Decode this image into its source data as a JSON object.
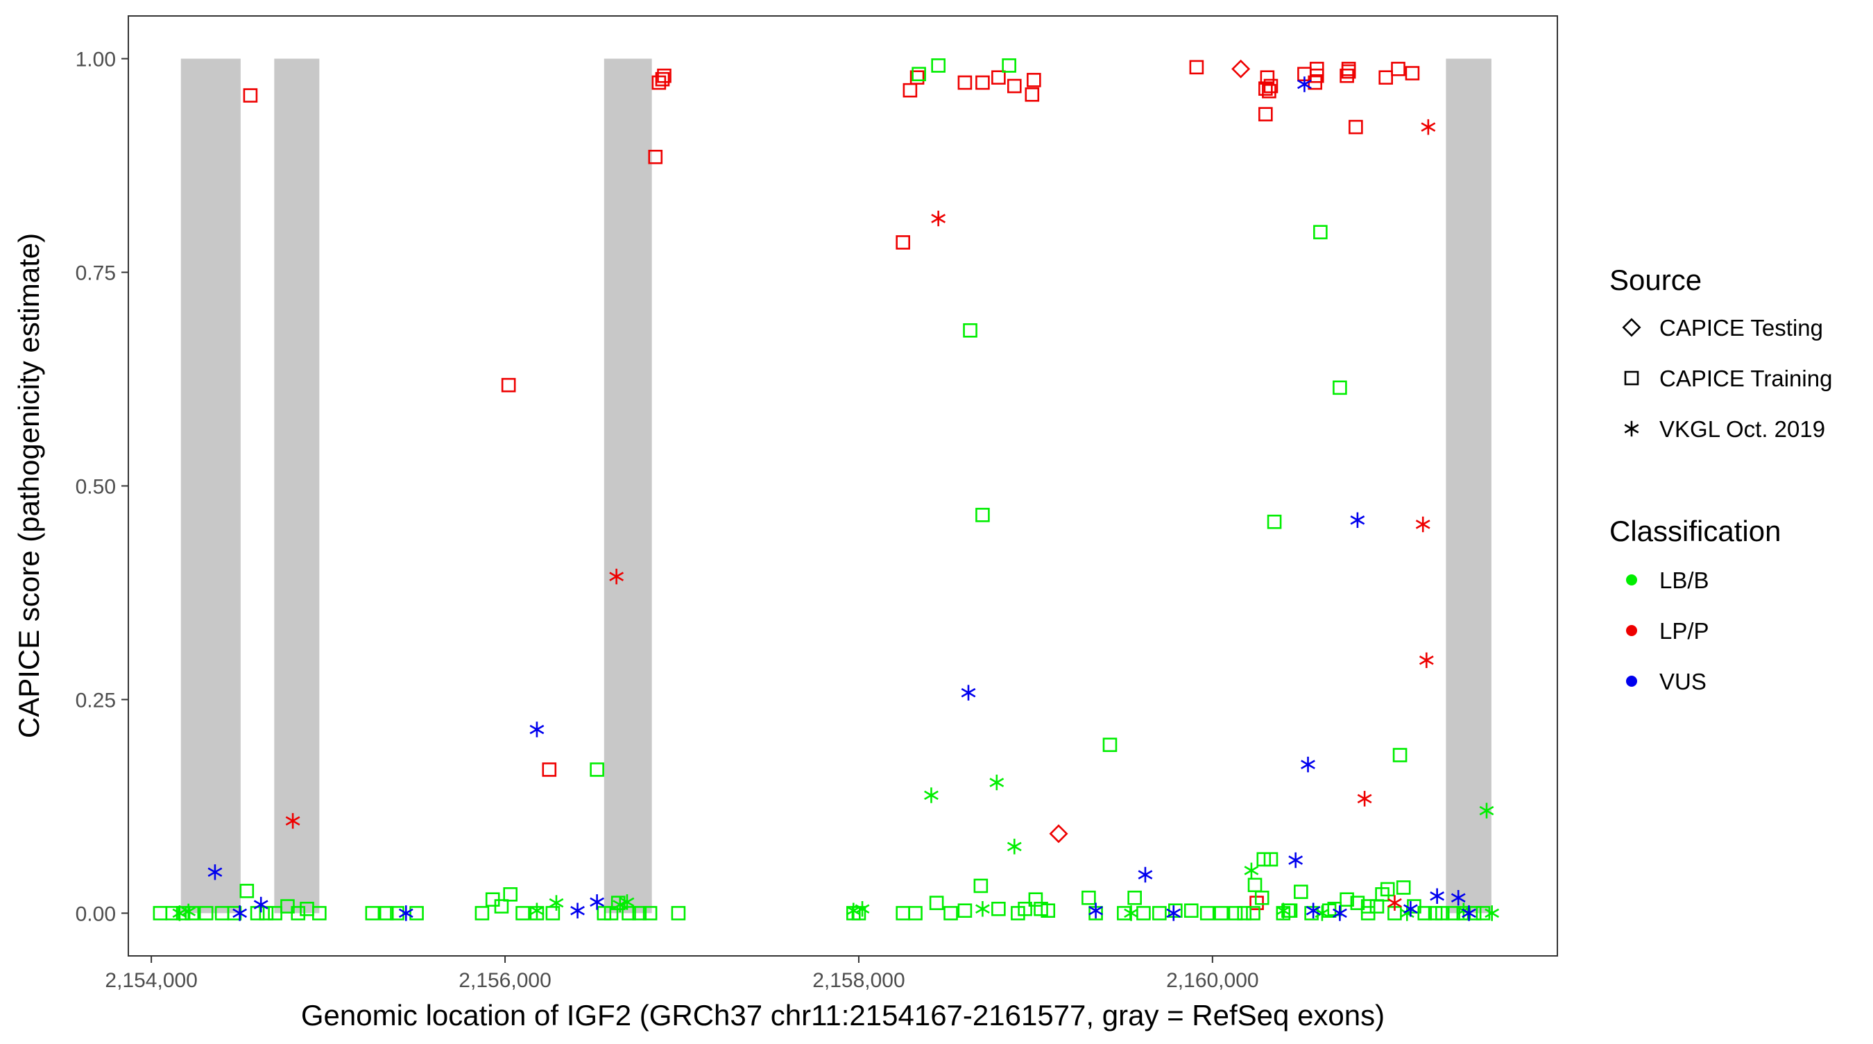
{
  "chart_data": {
    "type": "scatter",
    "xlabel": "Genomic location of IGF2 (GRCh37 chr11:2154167-2161577, gray = RefSeq exons)",
    "ylabel": "CAPICE score (pathogenicity estimate)",
    "xlim": [
      2153870,
      2161950
    ],
    "ylim": [
      -0.05,
      1.05
    ],
    "x_ticks": [
      2154000,
      2156000,
      2158000,
      2160000
    ],
    "x_tick_labels": [
      "2,154,000",
      "2,156,000",
      "2,158,000",
      "2,160,000"
    ],
    "y_ticks": [
      0,
      0.25,
      0.5,
      0.75,
      1.0
    ],
    "y_tick_labels": [
      "0.00",
      "0.25",
      "0.50",
      "0.75",
      "1.00"
    ],
    "grid": false,
    "exons": [
      [
        2154167,
        2154505
      ],
      [
        2154695,
        2154950
      ],
      [
        2156560,
        2156830
      ],
      [
        2161320,
        2161577
      ]
    ],
    "exon_color": "#c8c8c8",
    "legend": {
      "position": "right",
      "source_title": "Source",
      "source_items": [
        {
          "label": "CAPICE Testing",
          "shape": "diamond"
        },
        {
          "label": "CAPICE Training",
          "shape": "square"
        },
        {
          "label": "VKGL Oct. 2019",
          "shape": "asterisk"
        }
      ],
      "class_title": "Classification",
      "class_items": [
        {
          "label": "LB/B",
          "color": "#00ee00"
        },
        {
          "label": "LP/P",
          "color": "#ee0000"
        },
        {
          "label": "VUS",
          "color": "#0000ee"
        }
      ]
    },
    "series": [
      {
        "source": "CAPICE Training",
        "classification": "LP/P",
        "shape": "square",
        "color": "#ee0000",
        "points": [
          [
            2154560,
            0.957
          ],
          [
            2156020,
            0.618
          ],
          [
            2156250,
            0.168
          ],
          [
            2156850,
            0.885
          ],
          [
            2156870,
            0.972
          ],
          [
            2156890,
            0.976
          ],
          [
            2156900,
            0.98
          ],
          [
            2158250,
            0.785
          ],
          [
            2158290,
            0.963
          ],
          [
            2158330,
            0.978
          ],
          [
            2158600,
            0.972
          ],
          [
            2158700,
            0.972
          ],
          [
            2158790,
            0.978
          ],
          [
            2158880,
            0.968
          ],
          [
            2158980,
            0.958
          ],
          [
            2158990,
            0.975
          ],
          [
            2159910,
            0.99
          ],
          [
            2160300,
            0.935
          ],
          [
            2160300,
            0.965
          ],
          [
            2160310,
            0.978
          ],
          [
            2160320,
            0.962
          ],
          [
            2160330,
            0.968
          ],
          [
            2160520,
            0.982
          ],
          [
            2160580,
            0.972
          ],
          [
            2160590,
            0.98
          ],
          [
            2160590,
            0.988
          ],
          [
            2160760,
            0.98
          ],
          [
            2160770,
            0.985
          ],
          [
            2160770,
            0.988
          ],
          [
            2160810,
            0.92
          ],
          [
            2160980,
            0.978
          ],
          [
            2161050,
            0.988
          ],
          [
            2161130,
            0.983
          ],
          [
            2160250,
            0.012
          ]
        ]
      },
      {
        "source": "CAPICE Training",
        "classification": "LB/B",
        "shape": "square",
        "color": "#00ee00",
        "points": [
          [
            2154050,
            0
          ],
          [
            2154120,
            0
          ],
          [
            2154180,
            0
          ],
          [
            2154230,
            0
          ],
          [
            2154310,
            0
          ],
          [
            2154400,
            0
          ],
          [
            2154470,
            0
          ],
          [
            2154540,
            0.026
          ],
          [
            2154600,
            0
          ],
          [
            2154650,
            0
          ],
          [
            2154700,
            0
          ],
          [
            2154770,
            0.008
          ],
          [
            2154830,
            0
          ],
          [
            2154880,
            0.005
          ],
          [
            2154950,
            0
          ],
          [
            2155250,
            0
          ],
          [
            2155330,
            0
          ],
          [
            2155390,
            0
          ],
          [
            2155500,
            0
          ],
          [
            2155870,
            0
          ],
          [
            2155930,
            0.016
          ],
          [
            2155980,
            0.008
          ],
          [
            2156030,
            0.022
          ],
          [
            2156100,
            0
          ],
          [
            2156180,
            0
          ],
          [
            2156270,
            0
          ],
          [
            2156520,
            0.168
          ],
          [
            2156560,
            0
          ],
          [
            2156600,
            0
          ],
          [
            2156640,
            0.012
          ],
          [
            2156700,
            0
          ],
          [
            2156760,
            0
          ],
          [
            2156820,
            0
          ],
          [
            2156980,
            0
          ],
          [
            2157970,
            0
          ],
          [
            2158000,
            0
          ],
          [
            2158250,
            0
          ],
          [
            2158320,
            0
          ],
          [
            2158340,
            0.982
          ],
          [
            2158440,
            0.012
          ],
          [
            2158450,
            0.992
          ],
          [
            2158520,
            0
          ],
          [
            2158600,
            0.003
          ],
          [
            2158630,
            0.682
          ],
          [
            2158690,
            0.032
          ],
          [
            2158700,
            0.466
          ],
          [
            2158790,
            0.005
          ],
          [
            2158850,
            0.992
          ],
          [
            2158900,
            0
          ],
          [
            2158940,
            0.005
          ],
          [
            2159000,
            0.016
          ],
          [
            2159030,
            0.005
          ],
          [
            2159070,
            0.003
          ],
          [
            2159300,
            0.018
          ],
          [
            2159340,
            0
          ],
          [
            2159420,
            0.197
          ],
          [
            2159500,
            0
          ],
          [
            2159560,
            0.018
          ],
          [
            2159610,
            0
          ],
          [
            2159700,
            0
          ],
          [
            2159790,
            0.003
          ],
          [
            2159880,
            0.003
          ],
          [
            2159970,
            0
          ],
          [
            2160050,
            0
          ],
          [
            2160130,
            0
          ],
          [
            2160180,
            0
          ],
          [
            2160230,
            0
          ],
          [
            2160280,
            0.018
          ],
          [
            2160290,
            0.063
          ],
          [
            2160330,
            0.063
          ],
          [
            2160350,
            0.458
          ],
          [
            2160400,
            0
          ],
          [
            2160430,
            0.003
          ],
          [
            2160500,
            0.025
          ],
          [
            2160560,
            0
          ],
          [
            2160610,
            0.797
          ],
          [
            2160690,
            0.005
          ],
          [
            2160720,
            0.615
          ],
          [
            2160760,
            0.016
          ],
          [
            2160820,
            0.012
          ],
          [
            2160880,
            0
          ],
          [
            2160930,
            0.008
          ],
          [
            2160960,
            0.022
          ],
          [
            2160990,
            0.028
          ],
          [
            2161030,
            0
          ],
          [
            2161060,
            0.185
          ],
          [
            2161080,
            0.03
          ],
          [
            2161140,
            0.008
          ],
          [
            2161200,
            0
          ],
          [
            2161260,
            0
          ],
          [
            2161300,
            0
          ],
          [
            2161360,
            0
          ],
          [
            2161420,
            0
          ],
          [
            2161480,
            0
          ],
          [
            2161530,
            0
          ],
          [
            2160240,
            0.033
          ],
          [
            2160440,
            0.003
          ],
          [
            2160660,
            0.003
          ],
          [
            2160880,
            0.008
          ]
        ]
      },
      {
        "source": "CAPICE Testing",
        "classification": "LP/P",
        "shape": "diamond",
        "color": "#ee0000",
        "points": [
          [
            2159130,
            0.093
          ],
          [
            2160160,
            0.988
          ]
        ]
      },
      {
        "source": "VKGL Oct. 2019",
        "classification": "LP/P",
        "shape": "asterisk",
        "color": "#ee0000",
        "points": [
          [
            2154800,
            0.108
          ],
          [
            2156630,
            0.394
          ],
          [
            2158450,
            0.813
          ],
          [
            2160860,
            0.134
          ],
          [
            2161030,
            0.012
          ],
          [
            2161190,
            0.455
          ],
          [
            2161210,
            0.296
          ],
          [
            2161220,
            0.92
          ]
        ]
      },
      {
        "source": "VKGL Oct. 2019",
        "classification": "LB/B",
        "shape": "asterisk",
        "color": "#00ee00",
        "points": [
          [
            2154160,
            0
          ],
          [
            2154210,
            0.002
          ],
          [
            2156180,
            0.003
          ],
          [
            2156290,
            0.012
          ],
          [
            2156650,
            0.01
          ],
          [
            2156690,
            0.013
          ],
          [
            2157970,
            0.003
          ],
          [
            2158020,
            0.005
          ],
          [
            2158410,
            0.138
          ],
          [
            2158700,
            0.005
          ],
          [
            2158780,
            0.153
          ],
          [
            2158880,
            0.078
          ],
          [
            2159540,
            0
          ],
          [
            2160220,
            0.05
          ],
          [
            2160400,
            0.003
          ],
          [
            2160620,
            0
          ],
          [
            2161100,
            0
          ],
          [
            2161420,
            0.003
          ],
          [
            2161550,
            0.12
          ],
          [
            2161580,
            0
          ]
        ]
      },
      {
        "source": "VKGL Oct. 2019",
        "classification": "VUS",
        "shape": "asterisk",
        "color": "#0000ee",
        "points": [
          [
            2154360,
            0.048
          ],
          [
            2154500,
            0
          ],
          [
            2154620,
            0.01
          ],
          [
            2155440,
            0
          ],
          [
            2156180,
            0.215
          ],
          [
            2156410,
            0.003
          ],
          [
            2156520,
            0.013
          ],
          [
            2158620,
            0.258
          ],
          [
            2159340,
            0.003
          ],
          [
            2159620,
            0.045
          ],
          [
            2159780,
            0
          ],
          [
            2160470,
            0.062
          ],
          [
            2160520,
            0.97
          ],
          [
            2160540,
            0.174
          ],
          [
            2160570,
            0.003
          ],
          [
            2160720,
            0
          ],
          [
            2160820,
            0.46
          ],
          [
            2161120,
            0.005
          ],
          [
            2161270,
            0.02
          ],
          [
            2161390,
            0.018
          ],
          [
            2161450,
            0
          ]
        ]
      }
    ]
  }
}
